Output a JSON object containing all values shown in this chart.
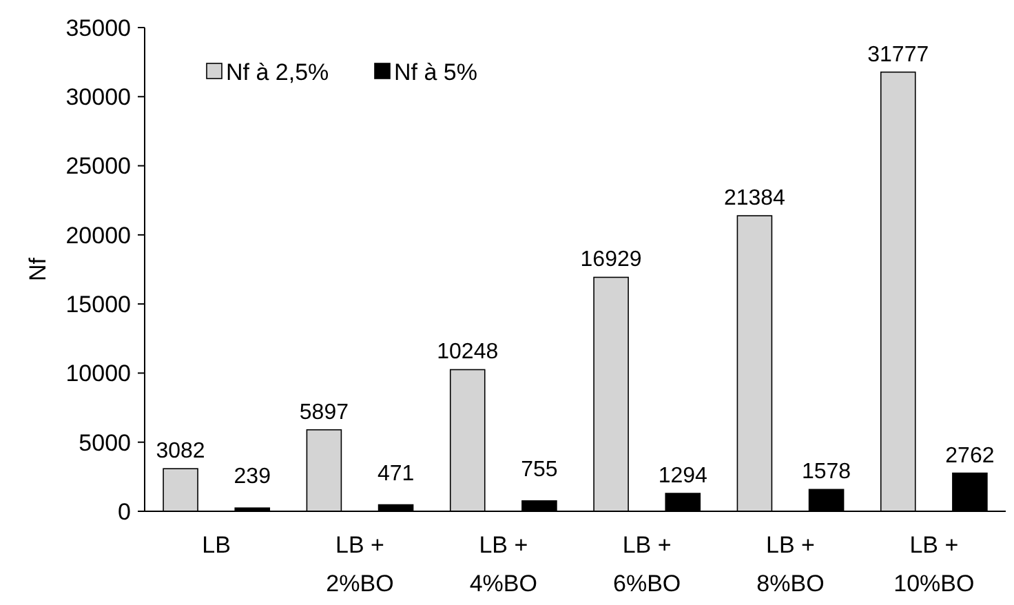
{
  "chart_data": {
    "type": "bar",
    "ylabel": "Nf",
    "categories": [
      "LB",
      "LB + 2%BO",
      "LB + 4%BO",
      "LB + 6%BO",
      "LB + 8%BO",
      "LB + 10%BO"
    ],
    "series": [
      {
        "name": "Nf à 2,5%",
        "color": "#d4d4d4",
        "values": [
          3082,
          5897,
          10248,
          16929,
          21384,
          31777
        ]
      },
      {
        "name": "Nf à 5%",
        "color": "#000000",
        "values": [
          239,
          471,
          755,
          1294,
          1578,
          2762
        ]
      }
    ],
    "ylim": [
      0,
      35000
    ],
    "yticks": [
      0,
      5000,
      10000,
      15000,
      20000,
      25000,
      30000,
      35000
    ],
    "data_labels": true,
    "legend": "top left",
    "grid": false
  }
}
